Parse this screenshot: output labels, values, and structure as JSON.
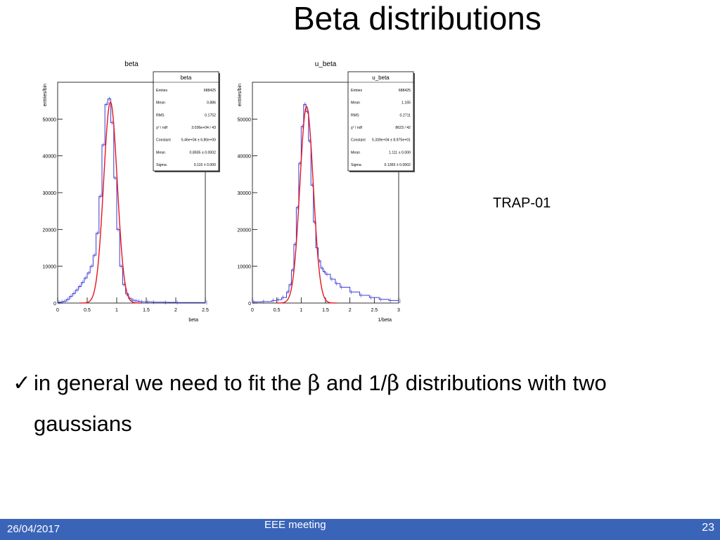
{
  "slide": {
    "title": "Beta distributions",
    "trap_label": "TRAP-01",
    "bullet": {
      "check": "✓",
      "text_before_1": "in general we need to fit the ",
      "symbol_1": "β",
      "text_middle": " and 1/",
      "symbol_2": "β",
      "text_after": " distributions with two gaussians"
    },
    "footer": {
      "date": "26/04/2017",
      "center": "EEE meeting",
      "page": "23"
    }
  },
  "chart_data": [
    {
      "type": "histogram",
      "title": "beta",
      "xlabel": "beta",
      "ylabel": "entries/bin",
      "xlim": [
        0,
        2.5
      ],
      "ylim": [
        0,
        60000
      ],
      "xticks": [
        0,
        0.5,
        1,
        1.5,
        2,
        2.5
      ],
      "xticklabels": [
        "0",
        "0.5",
        "1",
        "1.5",
        "2",
        "2.5"
      ],
      "yticks": [
        0,
        10000,
        20000,
        30000,
        40000,
        50000
      ],
      "yticklabels": [
        "0",
        "10000",
        "20000",
        "30000",
        "40000",
        "50000"
      ],
      "histogram_color": "#3b3bd6",
      "fit_color": "#e8141e",
      "histogram": {
        "x": [
          0.0,
          0.05,
          0.1,
          0.15,
          0.2,
          0.25,
          0.3,
          0.35,
          0.4,
          0.45,
          0.5,
          0.55,
          0.6,
          0.65,
          0.7,
          0.75,
          0.8,
          0.85,
          0.9,
          0.95,
          1.0,
          1.05,
          1.1,
          1.15,
          1.2,
          1.25,
          1.3,
          1.35,
          1.4,
          1.5,
          1.6,
          1.8,
          2.0,
          2.5
        ],
        "y": [
          200,
          300,
          500,
          1000,
          1800,
          2600,
          3500,
          4500,
          5600,
          6800,
          8200,
          10000,
          13000,
          19000,
          29000,
          43000,
          54000,
          55500,
          49000,
          34000,
          20000,
          10000,
          5000,
          2500,
          1300,
          800,
          600,
          450,
          350,
          300,
          250,
          200,
          150,
          150
        ]
      },
      "fit": {
        "function": "gaus",
        "constant": 54600,
        "mean": 0.8935,
        "sigma": 0.115
      },
      "stats_box": {
        "title": "beta",
        "rows": [
          {
            "label": "Entries",
            "value": "688425"
          },
          {
            "label": "Mean",
            "value": "0.886"
          },
          {
            "label": "RMS",
            "value": "0.1752"
          },
          {
            "label": "χ² / ndf",
            "value": "3.036e+04 / 43"
          },
          {
            "label": "Constant",
            "value": "5.46e+04 ± 6.80e+00"
          },
          {
            "label": "Mean",
            "value": "0.8935 ± 0.0002"
          },
          {
            "label": "Sigma",
            "value": "0.115 ± 0.000"
          }
        ]
      }
    },
    {
      "type": "histogram",
      "title": "u_beta",
      "xlabel": "1/beta",
      "ylabel": "entries/bin",
      "xlim": [
        0,
        3
      ],
      "ylim": [
        0,
        60000
      ],
      "xticks": [
        0,
        0.5,
        1,
        1.5,
        2,
        2.5,
        3
      ],
      "xticklabels": [
        "0",
        "0.5",
        "1",
        "1.5",
        "2",
        "2.5",
        "3"
      ],
      "yticks": [
        0,
        10000,
        20000,
        30000,
        40000,
        50000
      ],
      "yticklabels": [
        "0",
        "10000",
        "20000",
        "30000",
        "40000",
        "50000"
      ],
      "histogram_color": "#3b3bd6",
      "fit_color": "#e8141e",
      "histogram": {
        "x": [
          0.0,
          0.2,
          0.4,
          0.5,
          0.6,
          0.7,
          0.75,
          0.8,
          0.85,
          0.9,
          0.95,
          1.0,
          1.05,
          1.1,
          1.15,
          1.2,
          1.25,
          1.3,
          1.35,
          1.4,
          1.45,
          1.5,
          1.6,
          1.7,
          1.8,
          2.0,
          2.2,
          2.4,
          2.6,
          2.8,
          3.0
        ],
        "y": [
          300,
          400,
          700,
          900,
          1500,
          3000,
          5000,
          9000,
          16000,
          26000,
          38000,
          48000,
          54000,
          52000,
          44000,
          32000,
          22000,
          15000,
          11500,
          9500,
          8500,
          7800,
          6500,
          5300,
          4300,
          3000,
          2100,
          1500,
          1000,
          700,
          500
        ]
      },
      "fit": {
        "function": "gaus",
        "constant": 53400,
        "mean": 1.111,
        "sigma": 0.1365
      },
      "stats_box": {
        "title": "u_beta",
        "rows": [
          {
            "label": "Entries",
            "value": "688425"
          },
          {
            "label": "Mean",
            "value": "1.165"
          },
          {
            "label": "RMS",
            "value": "0.2711"
          },
          {
            "label": "χ² / ndf",
            "value": "8623 / 42"
          },
          {
            "label": "Constant",
            "value": "5.339e+04 ± 8.975e+01"
          },
          {
            "label": "Mean",
            "value": "1.111 ± 0.000"
          },
          {
            "label": "Sigma",
            "value": "0.1365 ± 0.0002"
          }
        ]
      }
    }
  ]
}
